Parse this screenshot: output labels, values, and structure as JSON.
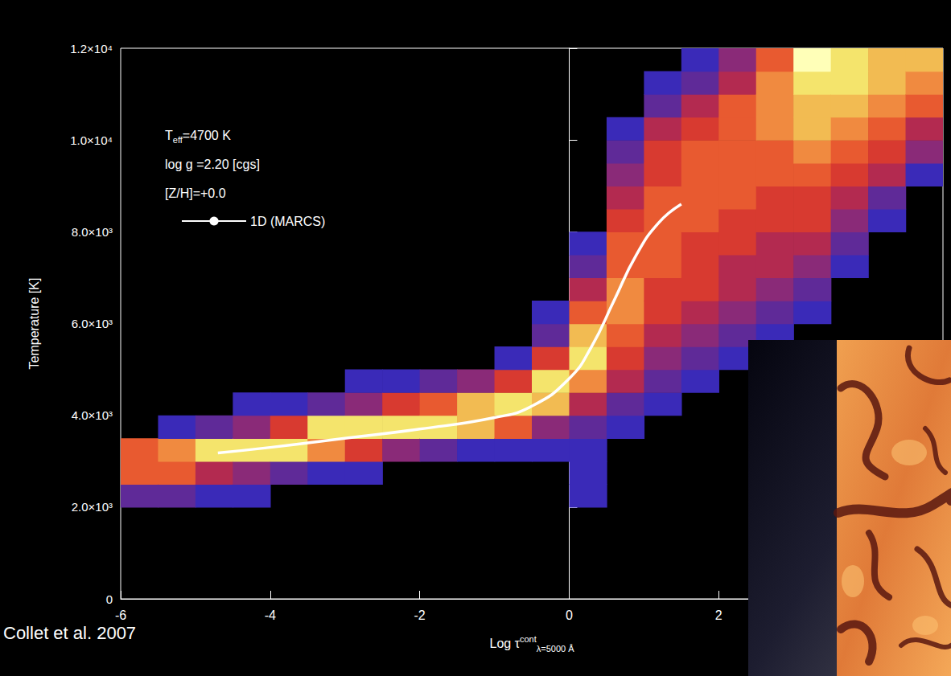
{
  "chart_data": {
    "type": "density",
    "annotations": [
      [
        "T",
        {
          "sub": "eff"
        },
        "=4700 K"
      ],
      [
        "log g =2.20 [cgs]"
      ],
      [
        "[Z/H]=+0.0"
      ]
    ],
    "credit": "Collet et al. 2007",
    "xlabel": [
      "Log τ",
      {
        "sup": "cont"
      },
      {
        "sub": "λ=5000 Å"
      }
    ],
    "ylabel": "Temperature [K]",
    "xlim": [
      -6,
      5
    ],
    "xticks": [
      -6,
      -4,
      -2,
      0,
      2
    ],
    "ylim": [
      0,
      12000
    ],
    "yticks": [
      0,
      {
        "value": 2000,
        "label": "2.0×10³"
      },
      {
        "value": 4000,
        "label": "4.0×10³"
      },
      {
        "value": 6000,
        "label": "6.0×10³"
      },
      {
        "value": 8000,
        "label": "8.0×10³"
      },
      {
        "value": 10000,
        "label": "1.0×10⁴"
      },
      {
        "value": 12000,
        "label": "1.2×10⁴"
      }
    ],
    "grid": false,
    "legend": "upper left",
    "density": {
      "x_bins": [
        -6,
        -5.5,
        -5,
        -4.5,
        -4,
        -3.5,
        -3,
        -2.5,
        -2,
        -1.5,
        -1,
        -0.5,
        0,
        0.5,
        1,
        1.5,
        2,
        2.5,
        3,
        3.5,
        4,
        4.5,
        5
      ],
      "y_bins": [
        2000,
        2500,
        3000,
        3500,
        4000,
        4500,
        5000,
        5500,
        6000,
        6500,
        7000,
        7500,
        8000,
        8500,
        9000,
        9500,
        10000,
        10500,
        11000,
        11500,
        12000
      ],
      "range": [
        0,
        10
      ],
      "counts": [
        [
          2,
          6,
          6,
          0,
          0,
          0,
          0,
          0,
          0,
          0,
          0,
          0,
          0,
          0,
          0,
          0,
          0,
          0,
          0,
          0
        ],
        [
          2,
          6,
          7,
          1,
          0,
          0,
          0,
          0,
          0,
          0,
          0,
          0,
          0,
          0,
          0,
          0,
          0,
          0,
          0,
          0
        ],
        [
          1,
          4,
          9,
          2,
          0,
          0,
          0,
          0,
          0,
          0,
          0,
          0,
          0,
          0,
          0,
          0,
          0,
          0,
          0,
          0
        ],
        [
          1,
          3,
          9,
          3,
          1,
          0,
          0,
          0,
          0,
          0,
          0,
          0,
          0,
          0,
          0,
          0,
          0,
          0,
          0,
          0
        ],
        [
          0,
          2,
          9,
          5,
          1,
          0,
          0,
          0,
          0,
          0,
          0,
          0,
          0,
          0,
          0,
          0,
          0,
          0,
          0,
          0
        ],
        [
          0,
          1,
          7,
          9,
          2,
          0,
          0,
          0,
          0,
          0,
          0,
          0,
          0,
          0,
          0,
          0,
          0,
          0,
          0,
          0
        ],
        [
          0,
          1,
          5,
          9,
          3,
          1,
          0,
          0,
          0,
          0,
          0,
          0,
          0,
          0,
          0,
          0,
          0,
          0,
          0,
          0
        ],
        [
          0,
          0,
          3,
          9,
          5,
          1,
          0,
          0,
          0,
          0,
          0,
          0,
          0,
          0,
          0,
          0,
          0,
          0,
          0,
          0
        ],
        [
          0,
          0,
          2,
          9,
          6,
          2,
          0,
          0,
          0,
          0,
          0,
          0,
          0,
          0,
          0,
          0,
          0,
          0,
          0,
          0
        ],
        [
          0,
          0,
          1,
          8,
          8,
          3,
          0,
          0,
          0,
          0,
          0,
          0,
          0,
          0,
          0,
          0,
          0,
          0,
          0,
          0
        ],
        [
          0,
          0,
          1,
          6,
          9,
          5,
          1,
          0,
          0,
          0,
          0,
          0,
          0,
          0,
          0,
          0,
          0,
          0,
          0,
          0
        ],
        [
          0,
          0,
          1,
          3,
          8,
          9,
          5,
          2,
          1,
          0,
          0,
          0,
          0,
          0,
          0,
          0,
          0,
          0,
          0,
          0
        ],
        [
          1,
          1,
          1,
          2,
          4,
          7,
          9,
          8,
          6,
          4,
          2,
          1,
          0,
          0,
          0,
          0,
          0,
          0,
          0,
          0
        ],
        [
          0,
          0,
          0,
          1,
          2,
          4,
          5,
          6,
          7,
          7,
          6,
          6,
          5,
          4,
          3,
          2,
          1,
          0,
          0,
          0
        ],
        [
          0,
          0,
          0,
          0,
          1,
          2,
          3,
          4,
          5,
          5,
          6,
          6,
          6,
          6,
          5,
          5,
          4,
          2,
          1,
          0
        ],
        [
          0,
          0,
          0,
          0,
          0,
          1,
          2,
          3,
          4,
          5,
          5,
          5,
          6,
          6,
          6,
          6,
          5,
          4,
          2,
          1
        ],
        [
          0,
          0,
          0,
          0,
          0,
          0,
          1,
          2,
          3,
          4,
          4,
          5,
          5,
          6,
          6,
          6,
          6,
          6,
          4,
          3
        ],
        [
          0,
          0,
          0,
          0,
          0,
          0,
          0,
          1,
          2,
          3,
          4,
          4,
          5,
          5,
          6,
          6,
          7,
          7,
          7,
          6
        ],
        [
          0,
          0,
          0,
          0,
          0,
          0,
          0,
          0,
          1,
          2,
          3,
          4,
          5,
          5,
          6,
          7,
          8,
          8,
          9,
          10
        ],
        [
          0,
          0,
          0,
          0,
          0,
          0,
          0,
          0,
          0,
          0,
          1,
          2,
          3,
          4,
          5,
          6,
          7,
          8,
          9,
          9
        ],
        [
          0,
          0,
          0,
          0,
          0,
          0,
          0,
          0,
          0,
          0,
          0,
          0,
          1,
          2,
          4,
          5,
          6,
          7,
          8,
          8
        ],
        [
          0,
          0,
          0,
          0,
          0,
          0,
          0,
          0,
          0,
          0,
          0,
          0,
          0,
          0,
          1,
          3,
          4,
          6,
          7,
          8
        ]
      ]
    },
    "series": [
      {
        "name": "1D (MARCS)",
        "type": "line",
        "color": "#ffffff",
        "marker": "none",
        "line_style": "solid",
        "x": [
          -4.7,
          -4,
          -3,
          -2,
          -1,
          -0.5,
          0,
          0.3,
          0.6,
          0.9,
          1.2,
          1.5
        ],
        "values": [
          3180,
          3300,
          3500,
          3700,
          3950,
          4200,
          4800,
          5500,
          6500,
          7500,
          8200,
          8600
        ]
      }
    ]
  }
}
